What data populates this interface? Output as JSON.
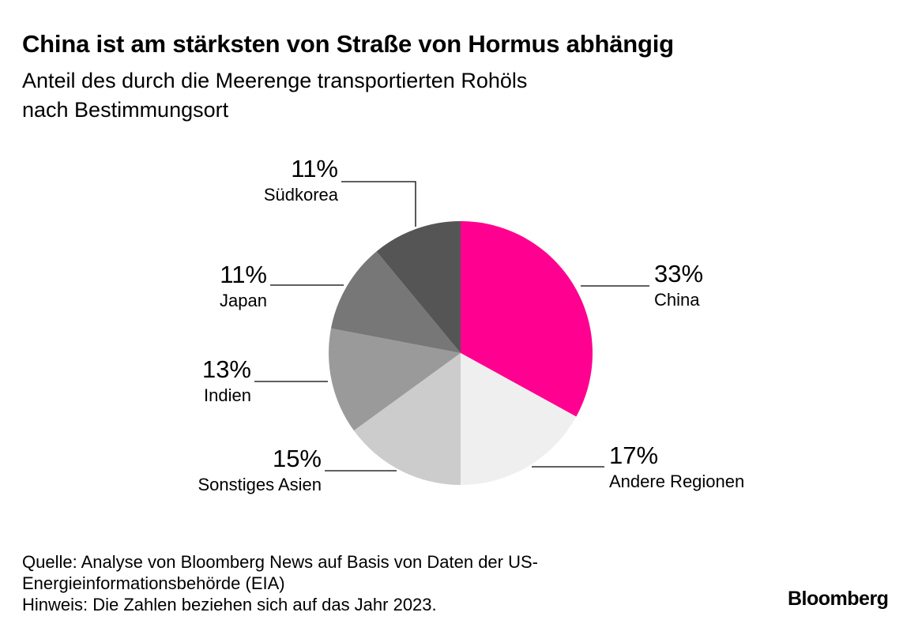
{
  "title": "China ist am stärksten von Straße von Hormus abhängig",
  "subtitle_line1": "Anteil des durch die Meerenge transportierten Rohöls",
  "subtitle_line2": "nach Bestimmungsort",
  "chart_data": {
    "type": "pie",
    "title": "China ist am stärksten von Straße von Hormus abhängig",
    "subtitle": "Anteil des durch die Meerenge transportierten Rohöls nach Bestimmungsort",
    "unit": "%",
    "slices": [
      {
        "name": "China",
        "value": 33,
        "label": "33%",
        "color": "#ff0090"
      },
      {
        "name": "Andere Regionen",
        "value": 17,
        "label": "17%",
        "color": "#efefef"
      },
      {
        "name": "Sonstiges Asien",
        "value": 15,
        "label": "15%",
        "color": "#cccccc"
      },
      {
        "name": "Indien",
        "value": 13,
        "label": "13%",
        "color": "#9a9a9a"
      },
      {
        "name": "Japan",
        "value": 11,
        "label": "11%",
        "color": "#777777"
      },
      {
        "name": "Südkorea",
        "value": 11,
        "label": "11%",
        "color": "#555555"
      }
    ]
  },
  "footer": {
    "source_line1": "Quelle: Analyse von Bloomberg News auf Basis von Daten der US-",
    "source_line2": "Energieinformationsbehörde (EIA)",
    "note": "Hinweis: Die Zahlen beziehen sich auf das Jahr 2023."
  },
  "brand": "Bloomberg"
}
